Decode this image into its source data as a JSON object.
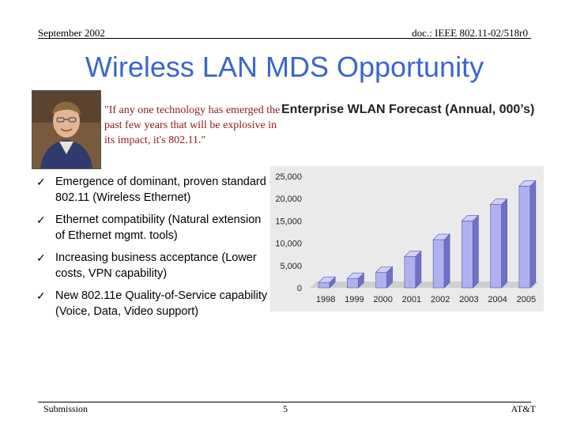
{
  "header": {
    "date": "September 2002",
    "doc_id": "doc.: IEEE 802.11-02/518r0"
  },
  "title": "Wireless LAN MDS Opportunity",
  "quote": "\"If any one technology has emerged the past few years that will be explosive in its impact, it's 802.11.\"",
  "bullets": [
    "Emergence of dominant, proven standard - 802.11 (Wireless Ethernet)",
    "Ethernet compatibility (Natural extension of Ethernet mgmt. tools)",
    "Increasing business acceptance (Lower costs, VPN capability)",
    "New 802.11e Quality-of-Service capability  (Voice, Data, Video support)"
  ],
  "chart_title": "Enterprise WLAN Forecast (Annual, 000’s)",
  "chart_data": {
    "type": "bar",
    "title": "Enterprise WLAN Forecast (Annual, 000’s)",
    "categories": [
      "1998",
      "1999",
      "2000",
      "2001",
      "2002",
      "2003",
      "2004",
      "2005"
    ],
    "values": [
      1200,
      2100,
      3500,
      7000,
      10800,
      15000,
      18700,
      22800
    ],
    "ylim": [
      0,
      25000
    ],
    "yticks": [
      "0",
      "5,000",
      "10,000",
      "15,000",
      "20,000",
      "25,000"
    ],
    "grid": false,
    "style": "3d"
  },
  "colors": {
    "title": "#3a66cc",
    "quote": "#8b1a1a",
    "bar_front": "#aeb0f0",
    "bar_side": "#6f71c4",
    "bar_top": "#cfd0fa"
  },
  "footer": {
    "left": "Submission",
    "page": "5",
    "right": "AT&T"
  }
}
